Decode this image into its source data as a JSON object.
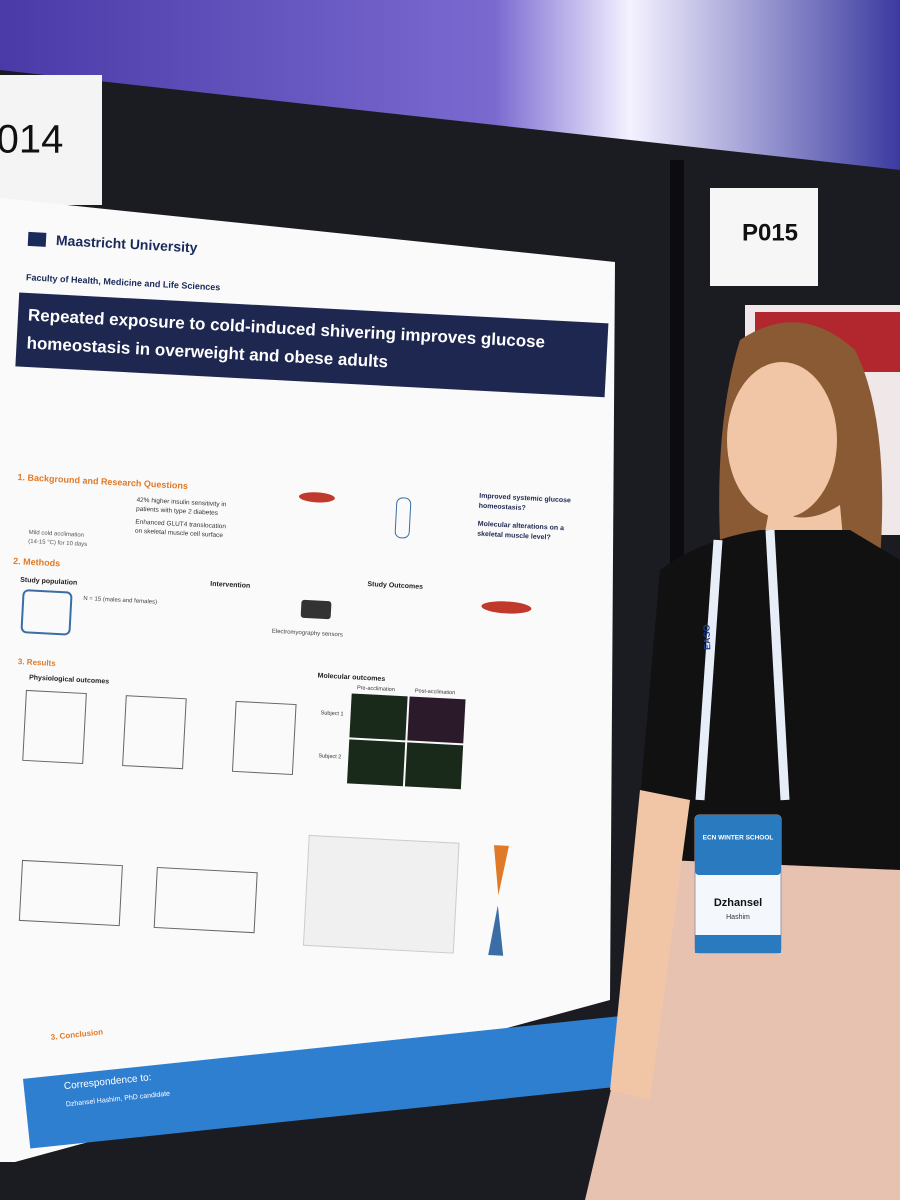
{
  "booth_numbers": [
    "014",
    "P015"
  ],
  "poster": {
    "institution": "Maastricht University",
    "faculty": "Faculty of Health, Medicine and Life Sciences",
    "title_lines": [
      "Repeated exposure to cold-induced shivering improves glucose",
      "homeostasis in overweight and obese adults"
    ],
    "background": {
      "heading": "1. Background and Research Questions",
      "intervention": "Mild cold acclimation",
      "temperature": "(14-15 °C) for 10 days",
      "finding": "42% higher insulin sensitivity in",
      "finding_2": "patients with type 2 diabetes",
      "glut4": "Enhanced GLUT4 translocation",
      "glut4_2": "on skeletal muscle cell surface",
      "question_1": "Improved systemic glucose",
      "question_1b": "homeostasis?",
      "question_2": "Molecular alterations on a",
      "question_2b": "skeletal muscle level?"
    },
    "methods": {
      "heading": "2. Methods",
      "population": "Study population",
      "intervention": "Intervention",
      "outcomes": "Study Outcomes",
      "n": "N = 15 (males and females)",
      "emg": "Electromyography sensors"
    },
    "results": {
      "heading": "3. Results",
      "physiological": "Physiological outcomes",
      "molecular": "Molecular outcomes",
      "pre": "Pre-acclimation",
      "post": "Post-acclimation",
      "subject_1": "Subject 1",
      "subject_2": "Subject 2"
    },
    "conclusion": {
      "heading": "3. Conclusion"
    },
    "correspondence": {
      "heading": "Correspondence to:",
      "name": "Dzhansel Hashim, PhD candidate"
    }
  },
  "lanyard": "EASO",
  "badge": {
    "event": "ECN WINTER SCHOOL",
    "name": "Dzhansel",
    "surname": "Hashim"
  }
}
